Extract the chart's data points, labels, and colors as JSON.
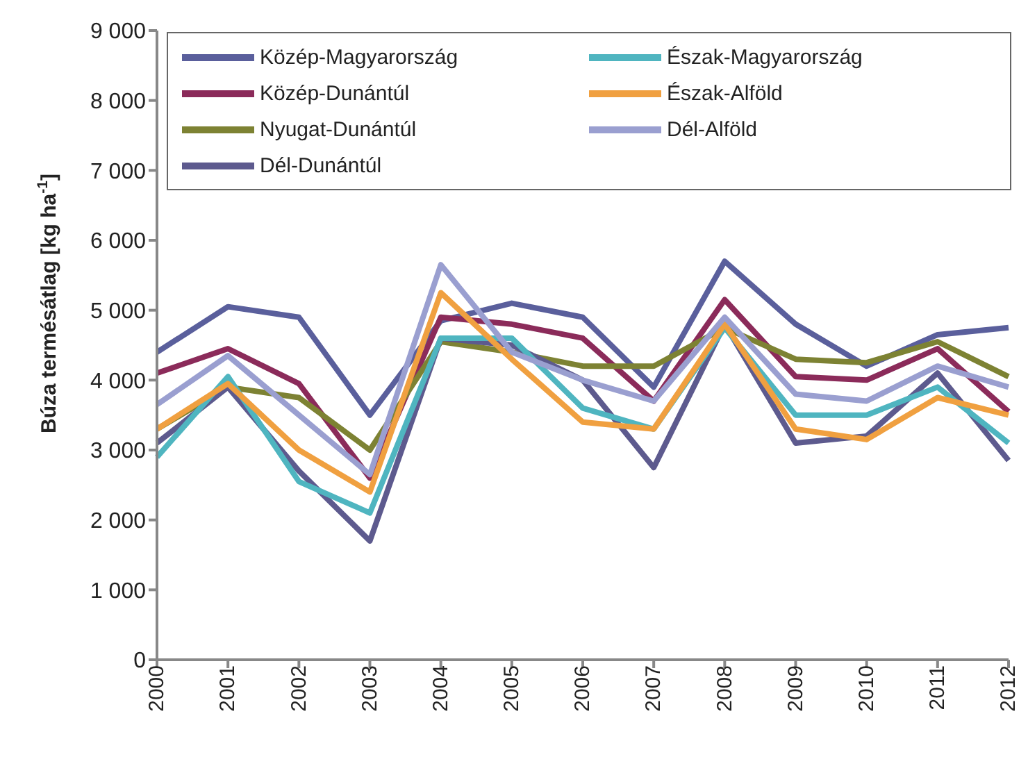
{
  "chart_data": {
    "type": "line",
    "ylabel": "Búza termésátlag [kg ha$^{-1}$]",
    "categories": [
      "2000",
      "2001",
      "2002",
      "2003",
      "2004",
      "2005",
      "2006",
      "2007",
      "2008",
      "2009",
      "2010",
      "2011",
      "2012"
    ],
    "series": [
      {
        "name": "Közép-Magyarország",
        "color": "#5a5f9c",
        "values": [
          4400,
          5050,
          4900,
          3500,
          4850,
          5100,
          4900,
          3900,
          5700,
          4800,
          4200,
          4650,
          4750
        ]
      },
      {
        "name": "Közép-Dunántúl",
        "color": "#8b2b5a",
        "values": [
          4100,
          4450,
          3950,
          2600,
          4900,
          4800,
          4600,
          3700,
          5150,
          4050,
          4000,
          4450,
          3550
        ]
      },
      {
        "name": "Nyugat-Dunántúl",
        "color": "#7d8233",
        "values": [
          3300,
          3900,
          3750,
          3000,
          4550,
          4400,
          4200,
          4200,
          4750,
          4300,
          4250,
          4550,
          4050
        ]
      },
      {
        "name": "Dél-Dunántúl",
        "color": "#5d5a8e",
        "values": [
          3100,
          3900,
          2700,
          1700,
          4600,
          4500,
          4000,
          2750,
          4800,
          3100,
          3200,
          4100,
          2850
        ]
      },
      {
        "name": "Észak-Magyarország",
        "color": "#4fb5c0",
        "values": [
          2900,
          4050,
          2550,
          2100,
          4600,
          4600,
          3600,
          3300,
          4750,
          3500,
          3500,
          3900,
          3100
        ]
      },
      {
        "name": "Észak-Alföld",
        "color": "#f0a040",
        "values": [
          3300,
          3950,
          3000,
          2400,
          5250,
          4300,
          3400,
          3300,
          4800,
          3300,
          3150,
          3750,
          3500
        ]
      },
      {
        "name": "Dél-Alföld",
        "color": "#9a9fd0",
        "values": [
          3650,
          4350,
          3500,
          2650,
          5650,
          4400,
          4000,
          3700,
          4900,
          3800,
          3700,
          4200,
          3900
        ]
      }
    ],
    "ylim": [
      0,
      9000
    ],
    "yticks": [
      0,
      {
        "value": 1000,
        "label": "1 000"
      },
      {
        "value": 2000,
        "label": "2 000"
      },
      {
        "value": 3000,
        "label": "3 000"
      },
      {
        "value": 4000,
        "label": "4 000"
      },
      {
        "value": 5000,
        "label": "5 000"
      },
      {
        "value": 6000,
        "label": "6 000"
      },
      {
        "value": 7000,
        "label": "7 000"
      },
      {
        "value": 8000,
        "label": "8 000"
      },
      {
        "value": 9000,
        "label": "9 000"
      }
    ],
    "grid": false,
    "legend": "top",
    "marker": "none",
    "line_style": "solid"
  }
}
